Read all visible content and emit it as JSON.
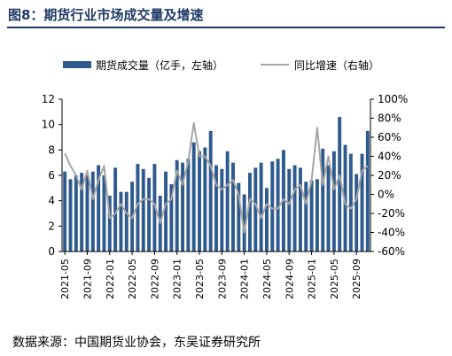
{
  "title": "图8：期货行业市场成交量及增速",
  "source": "数据来源：中国期货业协会，东吴证券研究所",
  "colors": {
    "bar": "#2e5a8e",
    "line": "#a6a6a6",
    "title": "#1f3b66",
    "axis": "#000000"
  },
  "chart_data": {
    "type": "bar",
    "grid": false,
    "legend_position": "top",
    "left_axis": {
      "ylim": [
        0,
        12
      ],
      "ticks": [
        "0",
        "2",
        "4",
        "6",
        "8",
        "10",
        "12"
      ]
    },
    "right_axis": {
      "ylim": [
        -60,
        100
      ],
      "ticks": [
        "-60%",
        "-40%",
        "-20%",
        "0%",
        "20%",
        "40%",
        "60%",
        "80%",
        "100%"
      ]
    },
    "x_tick_labels": [
      "2021-05",
      "2021-09",
      "2022-01",
      "2022-05",
      "2022-09",
      "2023-01",
      "2023-05",
      "2023-09",
      "2024-01",
      "2024-05",
      "2024-09",
      "2025-01",
      "2025-05",
      "2025-09"
    ],
    "x": [
      "2021-05",
      "2021-06",
      "2021-07",
      "2021-08",
      "2021-09",
      "2021-10",
      "2021-11",
      "2021-12",
      "2022-01",
      "2022-02",
      "2022-03",
      "2022-04",
      "2022-05",
      "2022-06",
      "2022-07",
      "2022-08",
      "2022-09",
      "2022-10",
      "2022-11",
      "2022-12",
      "2023-01",
      "2023-02",
      "2023-03",
      "2023-04",
      "2023-05",
      "2023-06",
      "2023-07",
      "2023-08",
      "2023-09",
      "2023-10",
      "2023-11",
      "2023-12",
      "2024-01",
      "2024-02",
      "2024-03",
      "2024-04",
      "2024-05",
      "2024-06",
      "2024-07",
      "2024-08",
      "2024-09",
      "2024-10",
      "2024-11",
      "2024-12",
      "2025-01",
      "2025-02",
      "2025-03",
      "2025-04",
      "2025-05",
      "2025-06",
      "2025-07",
      "2025-08",
      "2025-09",
      "2025-10",
      "2025-11"
    ],
    "series": [
      {
        "name": "期货成交量（亿手，左轴）",
        "type": "bar",
        "axis": "left",
        "values": [
          6.3,
          5.7,
          6.0,
          6.2,
          6.0,
          6.3,
          6.8,
          6.0,
          4.4,
          6.6,
          4.7,
          4.7,
          5.5,
          6.9,
          6.5,
          5.8,
          6.9,
          4.4,
          6.3,
          5.3,
          7.2,
          7.0,
          7.3,
          8.6,
          7.9,
          8.2,
          9.5,
          6.8,
          6.5,
          7.9,
          7.0,
          5.4,
          4.5,
          6.2,
          6.6,
          7.0,
          5.0,
          7.1,
          7.3,
          8.0,
          6.5,
          6.8,
          6.6,
          5.5,
          5.6,
          5.7,
          8.1,
          6.8,
          7.9,
          10.6,
          8.4,
          7.7,
          6.1,
          7.7,
          9.5
        ]
      },
      {
        "name": "同比增速（右轴）",
        "type": "line",
        "axis": "right",
        "values": [
          43,
          30,
          20,
          5,
          25,
          -5,
          15,
          30,
          -25,
          -20,
          -10,
          -20,
          -25,
          -10,
          -5,
          -5,
          -10,
          -30,
          -10,
          -5,
          25,
          10,
          35,
          75,
          40,
          40,
          30,
          10,
          5,
          10,
          15,
          0,
          -40,
          -5,
          -10,
          -25,
          -10,
          -15,
          -15,
          -5,
          -10,
          5,
          10,
          -10,
          15,
          70,
          10,
          40,
          5,
          20,
          -10,
          -15,
          -5,
          25,
          30
        ]
      }
    ]
  }
}
